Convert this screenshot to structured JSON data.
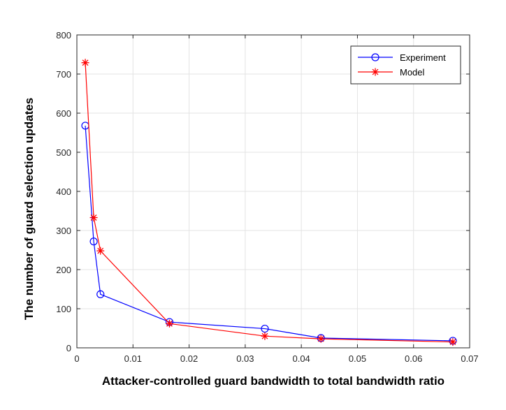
{
  "chart_data": {
    "type": "line",
    "title": "",
    "xlabel": "Attacker-controlled guard bandwidth to total bandwidth ratio",
    "ylabel": "The number of  guard selection updates",
    "xlim": [
      0,
      0.07
    ],
    "ylim": [
      0,
      800
    ],
    "x_ticks": [
      "0",
      "0.01",
      "0.02",
      "0.03",
      "0.04",
      "0.05",
      "0.06",
      "0.07"
    ],
    "y_ticks": [
      "0",
      "100",
      "200",
      "300",
      "400",
      "500",
      "600",
      "700",
      "800"
    ],
    "grid": true,
    "legend_position": "top-right",
    "series": [
      {
        "name": "Experiment",
        "color": "#0000ff",
        "marker": "circle",
        "x": [
          0.0015,
          0.003,
          0.0042,
          0.0165,
          0.0335,
          0.0435,
          0.067
        ],
        "y": [
          568,
          272,
          137,
          66,
          49,
          25,
          18
        ]
      },
      {
        "name": "Model",
        "color": "#ff0000",
        "marker": "asterisk",
        "x": [
          0.0015,
          0.003,
          0.0042,
          0.0165,
          0.0335,
          0.0435,
          0.067
        ],
        "y": [
          729,
          333,
          248,
          62,
          30,
          23,
          15
        ]
      }
    ]
  }
}
